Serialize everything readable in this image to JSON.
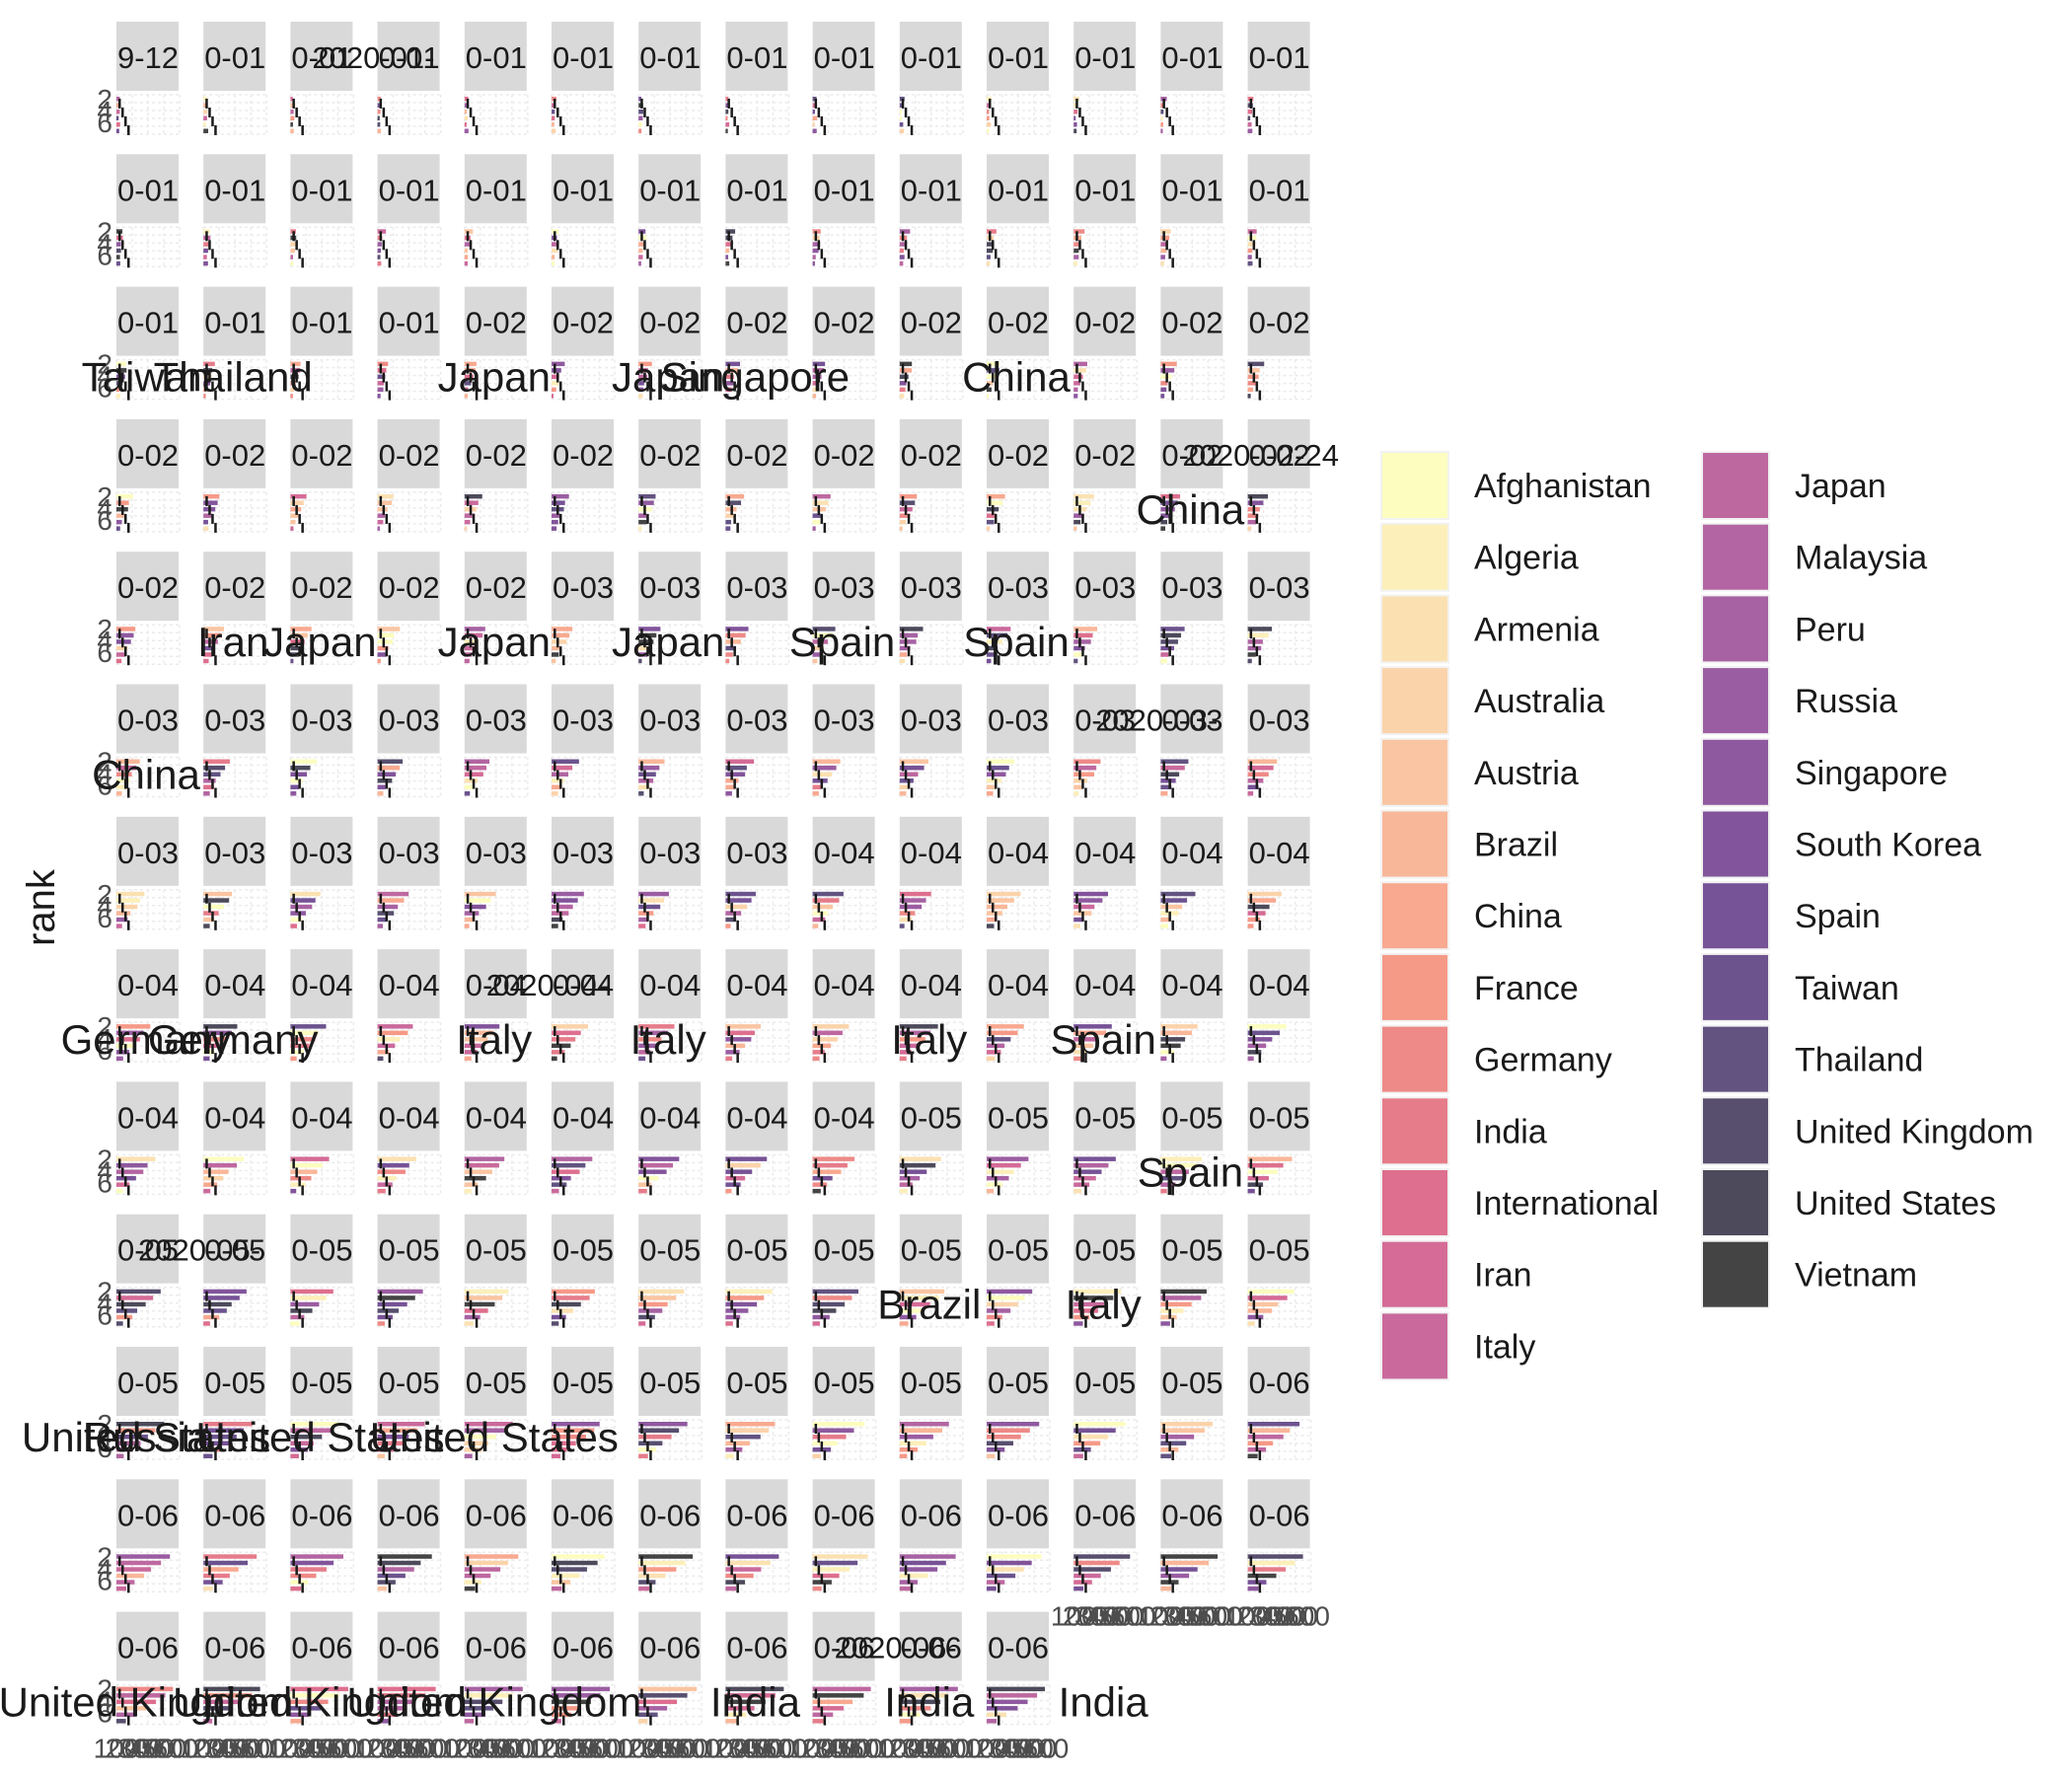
{
  "chart_data": {
    "type": "bar",
    "orientation": "horizontal",
    "facet": {
      "nrow": 13,
      "ncol": 14
    },
    "ylabel": "rank",
    "y_ticks": [
      "2",
      "4",
      "6"
    ],
    "x_ticks": [
      "100",
      "200",
      "300",
      "400",
      "500",
      "600"
    ],
    "grid": true,
    "legend_position": "right",
    "legend": [
      {
        "name": "Afghanistan",
        "color": "#FCFDBF"
      },
      {
        "name": "Algeria",
        "color": "#FCEFB9"
      },
      {
        "name": "Armenia",
        "color": "#FBE1B2"
      },
      {
        "name": "Australia",
        "color": "#FBD3AA"
      },
      {
        "name": "Austria",
        "color": "#FAC5A2"
      },
      {
        "name": "Brazil",
        "color": "#F9B799"
      },
      {
        "name": "China",
        "color": "#F8A990"
      },
      {
        "name": "France",
        "color": "#F69A88"
      },
      {
        "name": "Germany",
        "color": "#EE8A87"
      },
      {
        "name": "India",
        "color": "#E67C8A"
      },
      {
        "name": "International",
        "color": "#DE6F8E"
      },
      {
        "name": "Iran",
        "color": "#D56B96"
      },
      {
        "name": "Italy",
        "color": "#CA6A9C"
      },
      {
        "name": "Japan",
        "color": "#BE68A0"
      },
      {
        "name": "Malaysia",
        "color": "#B265A2"
      },
      {
        "name": "Peru",
        "color": "#A662A3"
      },
      {
        "name": "Russia",
        "color": "#9B5DA2"
      },
      {
        "name": "Singapore",
        "color": "#8F599F"
      },
      {
        "name": "South Korea",
        "color": "#82549B"
      },
      {
        "name": "Spain",
        "color": "#765296"
      },
      {
        "name": "Taiwan",
        "color": "#6C538E"
      },
      {
        "name": "Thailand",
        "color": "#625381"
      },
      {
        "name": "United Kingdom",
        "color": "#584F6F"
      },
      {
        "name": "United States",
        "color": "#4D4A5B"
      },
      {
        "name": "Vietnam",
        "color": "#444444"
      }
    ],
    "facet_strips": [
      "9-12",
      "0-01",
      "0-01",
      "0-01",
      "0-01",
      "0-01",
      "0-01",
      "0-01",
      "0-01",
      "0-01",
      "0-01",
      "0-01",
      "0-01",
      "0-01",
      "0-01",
      "0-01",
      "0-01",
      "0-01",
      "0-01",
      "0-01",
      "0-01",
      "0-01",
      "0-01",
      "0-01",
      "0-01",
      "0-01",
      "0-01",
      "0-01",
      "0-01",
      "0-01",
      "0-01",
      "0-01",
      "0-02",
      "0-02",
      "0-02",
      "0-02",
      "0-02",
      "0-02",
      "0-02",
      "0-02",
      "0-02",
      "0-02",
      "0-02",
      "0-02",
      "0-02",
      "0-02",
      "0-02",
      "0-02",
      "0-02",
      "0-02",
      "0-02",
      "0-02",
      "0-02",
      "0-02",
      "0-02",
      "0-02",
      "0-02",
      "0-02",
      "0-02",
      "0-02",
      "0-02",
      "0-03",
      "0-03",
      "0-03",
      "0-03",
      "0-03",
      "0-03",
      "0-03",
      "0-03",
      "0-03",
      "0-03",
      "0-03",
      "0-03",
      "0-03",
      "0-03",
      "0-03",
      "0-03",
      "0-03",
      "0-03",
      "0-03",
      "0-03",
      "0-03",
      "0-03",
      "0-03",
      "0-03",
      "0-03",
      "0-03",
      "0-03",
      "0-03",
      "0-03",
      "0-03",
      "0-03",
      "0-04",
      "0-04",
      "0-04",
      "0-04",
      "0-04",
      "0-04",
      "0-04",
      "0-04",
      "0-04",
      "0-04",
      "0-04",
      "0-04",
      "0-04",
      "0-04",
      "0-04",
      "0-04",
      "0-04",
      "0-04",
      "0-04",
      "0-04",
      "0-04",
      "0-04",
      "0-04",
      "0-04",
      "0-04",
      "0-04",
      "0-04",
      "0-04",
      "0-04",
      "0-05",
      "0-05",
      "0-05",
      "0-05",
      "0-05",
      "0-05",
      "0-05",
      "0-05",
      "0-05",
      "0-05",
      "0-05",
      "0-05",
      "0-05",
      "0-05",
      "0-05",
      "0-05",
      "0-05",
      "0-05",
      "0-05",
      "0-05",
      "0-05",
      "0-05",
      "0-05",
      "0-05",
      "0-05",
      "0-05",
      "0-05",
      "0-05",
      "0-05",
      "0-05",
      "0-05",
      "0-05",
      "0-06",
      "0-06",
      "0-06",
      "0-06",
      "0-06",
      "0-06",
      "0-06",
      "0-06",
      "0-06",
      "0-06",
      "0-06",
      "0-06",
      "0-06",
      "0-06",
      "0-06",
      "0-06",
      "0-06",
      "0-06",
      "0-06",
      "0-06",
      "0-06",
      "0-06",
      "0-06",
      "0-06",
      "0-06",
      "0-06"
    ],
    "overflow_strips": [
      {
        "text": "2020-01-",
        "facet": 2
      },
      {
        "text": "2020-02-24",
        "facet": 54
      },
      {
        "text": "2020-03-",
        "facet": 81
      },
      {
        "text": "2020-04-",
        "facet": 102
      },
      {
        "text": "2020-05-",
        "facet": 126
      },
      {
        "text": "2020-06-",
        "facet": 176
      }
    ],
    "floating_labels": [
      {
        "text": "Taiwan",
        "facet": 28
      },
      {
        "text": "Thailand",
        "facet": 29
      },
      {
        "text": "Japan",
        "facet": 32
      },
      {
        "text": "Japan",
        "facet": 34
      },
      {
        "text": "Singapore",
        "facet": 35
      },
      {
        "text": "China",
        "facet": 38
      },
      {
        "text": "China",
        "facet": 54
      },
      {
        "text": "Iran",
        "facet": 57
      },
      {
        "text": "Japan",
        "facet": 58
      },
      {
        "text": "Japan",
        "facet": 60
      },
      {
        "text": "Japan",
        "facet": 62
      },
      {
        "text": "Spain",
        "facet": 64
      },
      {
        "text": "Spain",
        "facet": 66
      },
      {
        "text": "China",
        "facet": 70
      },
      {
        "text": "Germany",
        "facet": 98
      },
      {
        "text": "Germany",
        "facet": 99
      },
      {
        "text": "Italy",
        "facet": 102
      },
      {
        "text": "Italy",
        "facet": 104
      },
      {
        "text": "Italy",
        "facet": 107
      },
      {
        "text": "Spain",
        "facet": 109
      },
      {
        "text": "Spain",
        "facet": 124
      },
      {
        "text": "Brazil",
        "facet": 135
      },
      {
        "text": "Italy",
        "facet": 137
      },
      {
        "text": "Russia",
        "facet": 140
      },
      {
        "text": "United States",
        "facet": 140
      },
      {
        "text": "United States",
        "facet": 142
      },
      {
        "text": "United States",
        "facet": 144
      },
      {
        "text": "United Kingdom",
        "facet": 168
      },
      {
        "text": "United Kingdom",
        "facet": 170
      },
      {
        "text": "United Kingdom",
        "facet": 172
      },
      {
        "text": "India",
        "facet": 175
      },
      {
        "text": "India",
        "facet": 177
      },
      {
        "text": "India",
        "facet": 179
      }
    ]
  }
}
